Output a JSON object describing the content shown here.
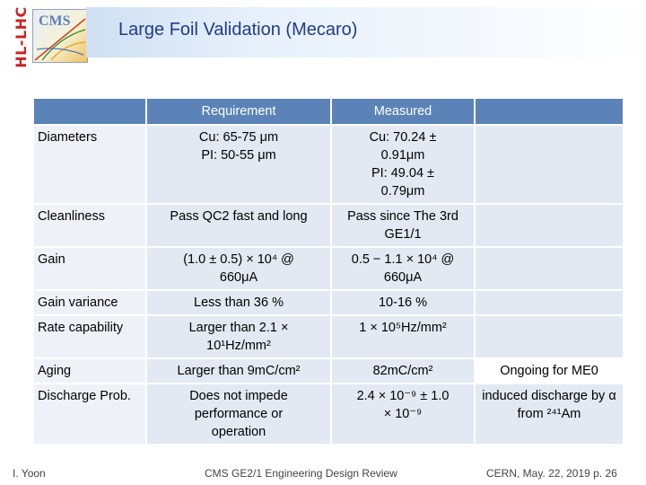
{
  "header": {
    "logo_vertical": "HL-LHC",
    "logo_cms": "CMS",
    "title": "Large Foil Validation (Mecaro)"
  },
  "table": {
    "headers": [
      "",
      "Requirement",
      "Measured",
      ""
    ],
    "rows": [
      {
        "label": "Diameters",
        "requirement": [
          "Cu: 65-75 μm",
          "PI: 50-55 μm"
        ],
        "measured": [
          "Cu: 70.24 ±",
          "0.91μm",
          "PI: 49.04 ±",
          "0.79μm"
        ],
        "note": ""
      },
      {
        "label": "Cleanliness",
        "requirement": [
          "Pass QC2 fast and long"
        ],
        "measured": [
          "Pass since The 3rd",
          "GE1/1"
        ],
        "note": ""
      },
      {
        "label": "Gain",
        "requirement": [
          "(1.0 ± 0.5) × 10⁴ @",
          "660μA"
        ],
        "measured": [
          "0.5 − 1.1 × 10⁴ @",
          "660μA"
        ],
        "note": ""
      },
      {
        "label": "Gain variance",
        "requirement": [
          "Less than 36 %"
        ],
        "measured": [
          "10-16 %"
        ],
        "note": ""
      },
      {
        "label": "Rate capability",
        "requirement": [
          "Larger than 2.1 ×",
          "10¹Hz/mm²"
        ],
        "measured": [
          "1 × 10⁵Hz/mm²"
        ],
        "note": ""
      },
      {
        "label": "Aging",
        "requirement": [
          "Larger than 9mC/cm²"
        ],
        "measured": [
          "82mC/cm²"
        ],
        "note": "Ongoing for ME0"
      },
      {
        "label": "Discharge Prob.",
        "requirement": [
          "Does not impede",
          "performance or",
          "operation"
        ],
        "measured": [
          "2.4 × 10⁻⁹ ± 1.0",
          "× 10⁻⁹"
        ],
        "note": "induced discharge by α from ²⁴¹Am"
      }
    ]
  },
  "footer": {
    "author": "I. Yoon",
    "event": "CMS GE2/1 Engineering Design Review",
    "place_date_page": "CERN, May. 22, 2019 p. 26"
  }
}
